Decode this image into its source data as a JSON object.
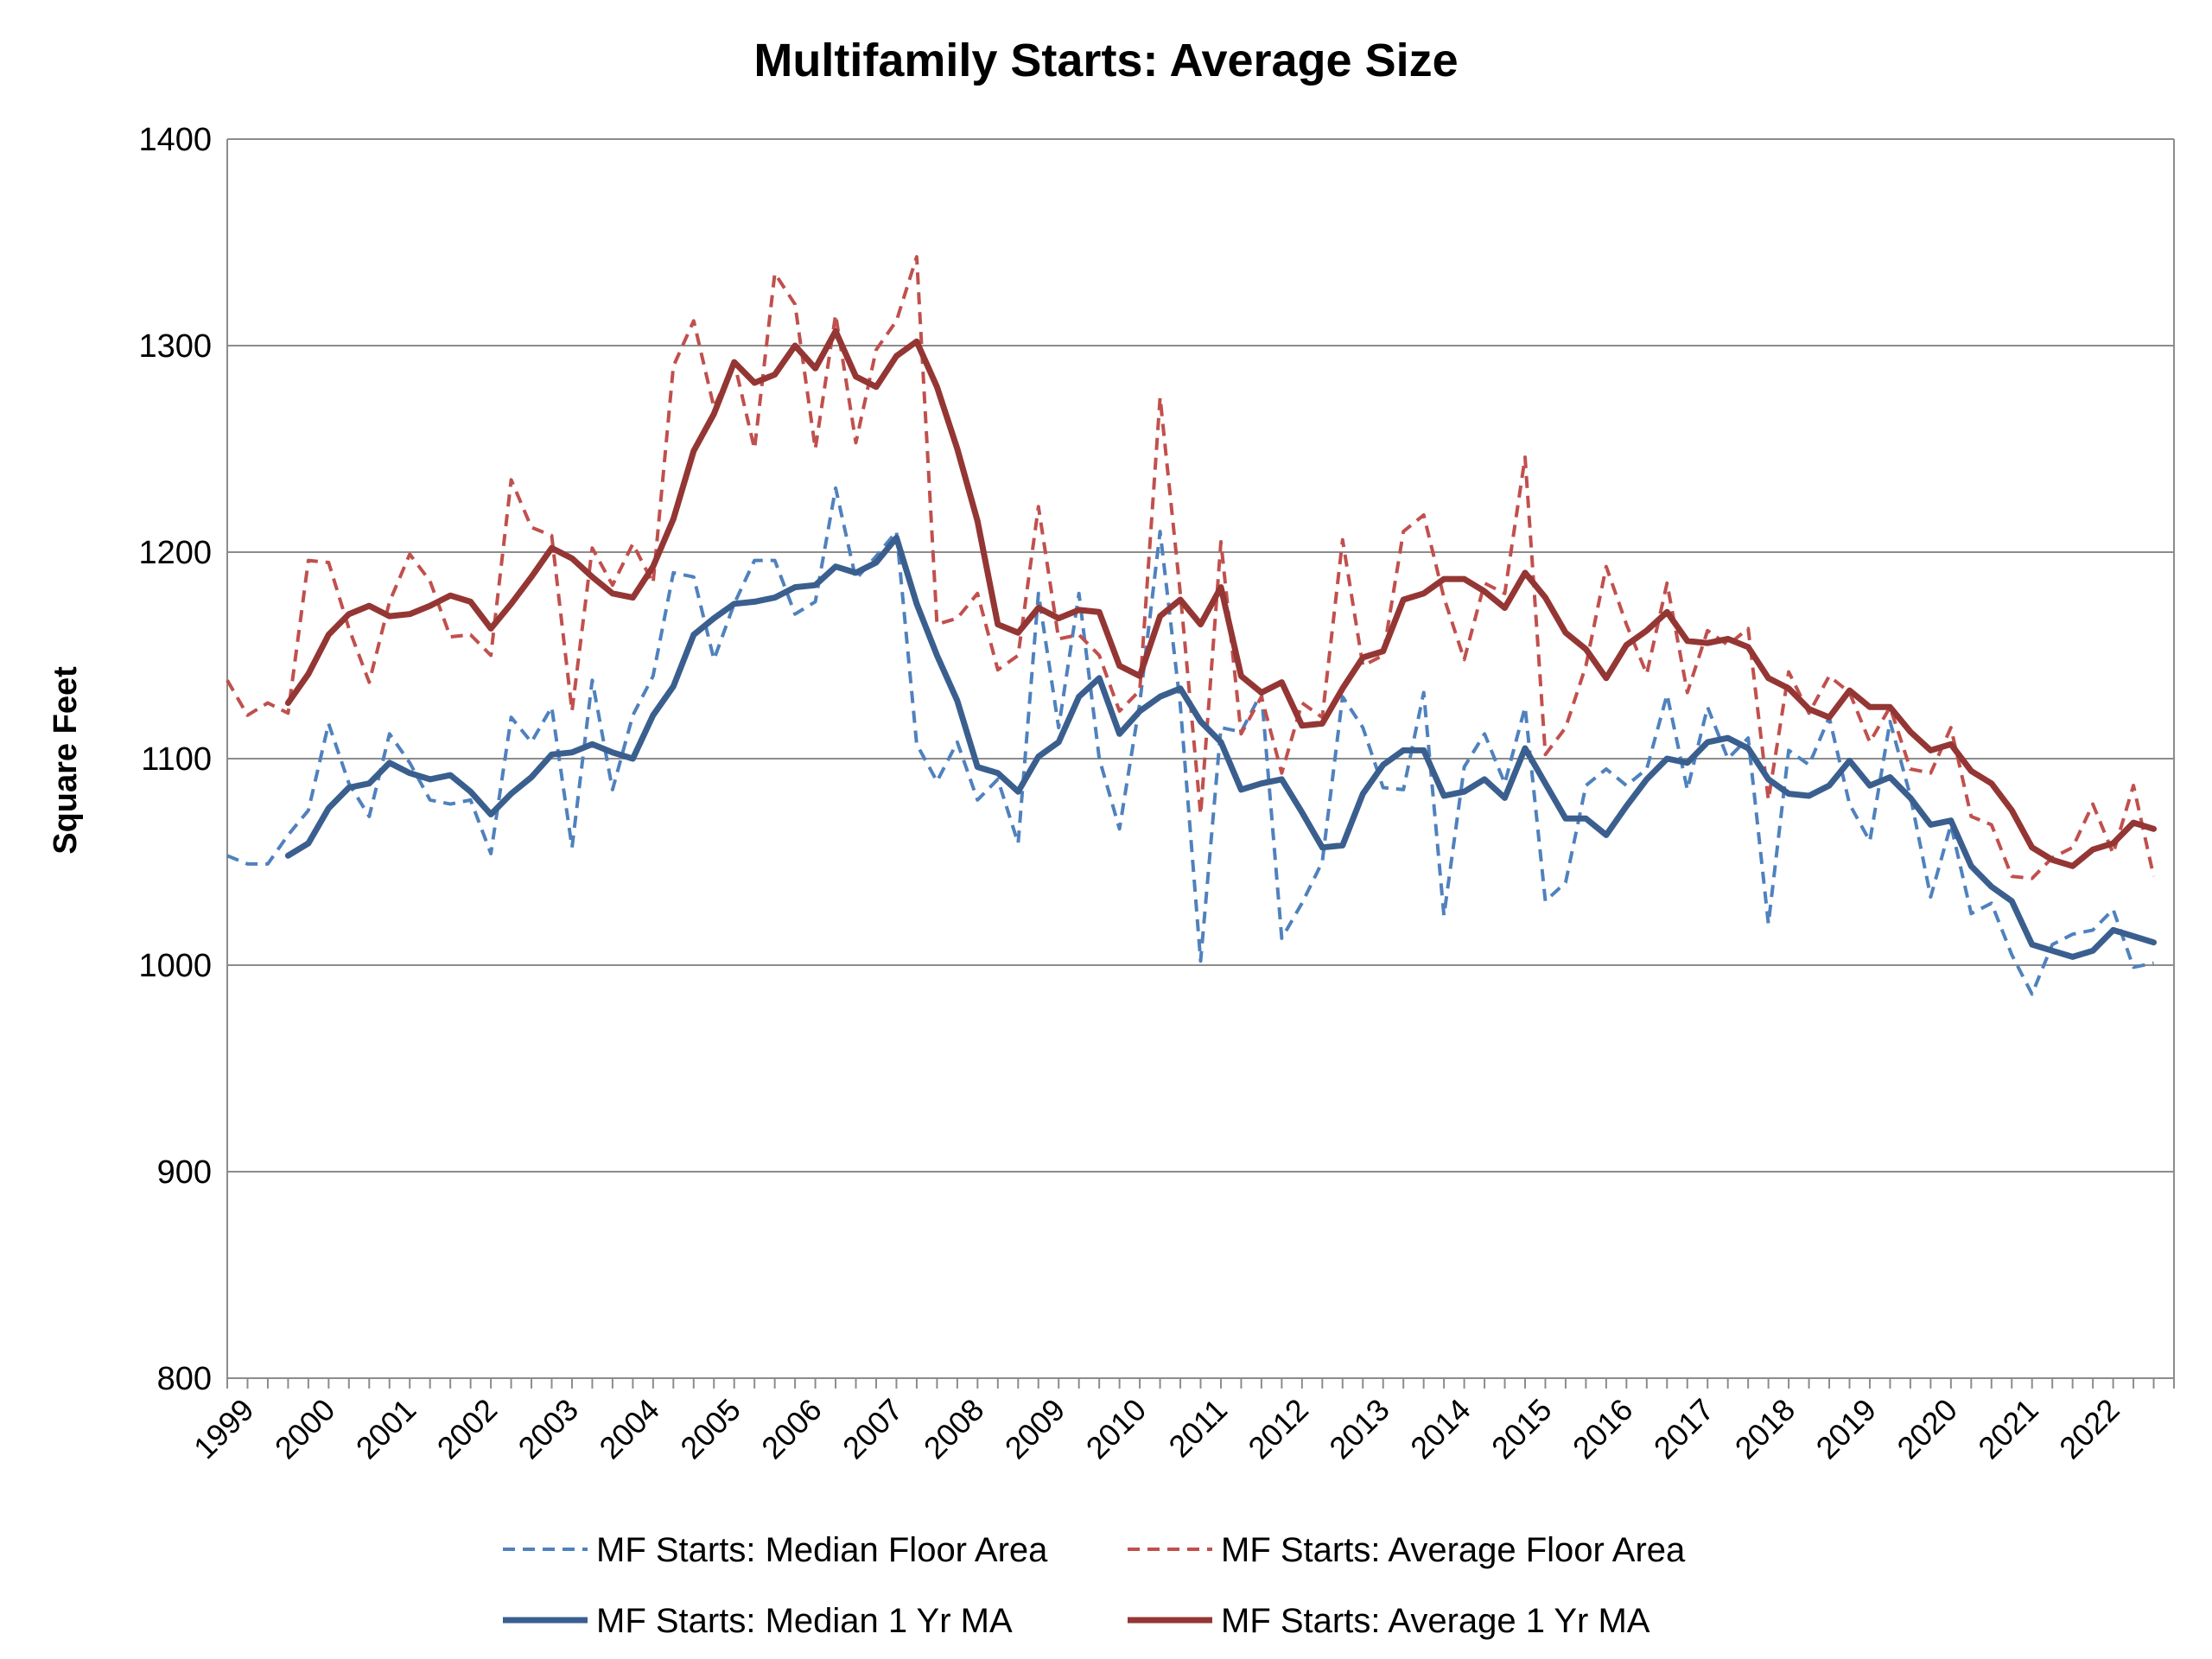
{
  "chart_data": {
    "type": "line",
    "title": "Multifamily Starts: Average Size",
    "xlabel": "",
    "ylabel": "Square Feet",
    "ylim": [
      800,
      1400
    ],
    "yticks": [
      800,
      900,
      1000,
      1100,
      1200,
      1300,
      1400
    ],
    "xlim": [
      1999,
      2023
    ],
    "x_tick_labels": [
      "1999",
      "2000",
      "2001",
      "2002",
      "2003",
      "2004",
      "2005",
      "2006",
      "2007",
      "2008",
      "2009",
      "2010",
      "2011",
      "2012",
      "2013",
      "2014",
      "2015",
      "2016",
      "2017",
      "2018",
      "2019",
      "2020",
      "2021",
      "2022"
    ],
    "grid": "horizontal",
    "legend_position": "bottom",
    "x_quarterly_start": "1999 Q1",
    "series": [
      {
        "name": "MF Starts: Median Floor Area",
        "style": "dashed",
        "color": "#4f81bd",
        "values": [
          1053,
          1049,
          1049,
          1063,
          1075,
          1117,
          1088,
          1072,
          1112,
          1098,
          1080,
          1078,
          1080,
          1054,
          1120,
          1108,
          1125,
          1057,
          1138,
          1085,
          1121,
          1140,
          1190,
          1188,
          1148,
          1175,
          1196,
          1196,
          1170,
          1176,
          1231,
          1187,
          1198,
          1210,
          1107,
          1089,
          1108,
          1080,
          1090,
          1059,
          1180,
          1115,
          1180,
          1100,
          1066,
          1127,
          1210,
          1126,
          1002,
          1115,
          1113,
          1132,
          1013,
          1030,
          1050,
          1130,
          1115,
          1086,
          1085,
          1132,
          1024,
          1096,
          1112,
          1088,
          1125,
          1031,
          1040,
          1087,
          1095,
          1087,
          1095,
          1131,
          1085,
          1125,
          1100,
          1110,
          1020,
          1104,
          1097,
          1120,
          1078,
          1060,
          1118,
          1082,
          1033,
          1068,
          1025,
          1030,
          1005,
          986,
          1010,
          1015,
          1017,
          1027,
          999,
          1001
        ]
      },
      {
        "name": "MF Starts: Average Floor Area",
        "style": "dashed",
        "color": "#c0504d",
        "values": [
          1138,
          1121,
          1127,
          1122,
          1196,
          1195,
          1163,
          1137,
          1176,
          1199,
          1186,
          1159,
          1160,
          1150,
          1235,
          1212,
          1208,
          1123,
          1202,
          1184,
          1204,
          1185,
          1290,
          1312,
          1270,
          1292,
          1250,
          1335,
          1320,
          1250,
          1315,
          1253,
          1298,
          1312,
          1343,
          1165,
          1168,
          1180,
          1143,
          1150,
          1222,
          1158,
          1160,
          1150,
          1123,
          1133,
          1275,
          1180,
          1073,
          1205,
          1112,
          1130,
          1093,
          1127,
          1120,
          1206,
          1145,
          1150,
          1210,
          1218,
          1178,
          1148,
          1185,
          1180,
          1246,
          1102,
          1115,
          1145,
          1193,
          1165,
          1141,
          1185,
          1132,
          1162,
          1155,
          1163,
          1080,
          1142,
          1122,
          1140,
          1132,
          1108,
          1125,
          1095,
          1093,
          1115,
          1072,
          1068,
          1043,
          1042,
          1052,
          1057,
          1078,
          1054,
          1087,
          1043
        ]
      },
      {
        "name": "MF Starts: Median 1 Yr MA",
        "style": "solid",
        "color": "#3a5f8f",
        "values": [
          null,
          null,
          null,
          1053,
          1059,
          1076,
          1086,
          1088,
          1098,
          1093,
          1090,
          1092,
          1084,
          1073,
          1083,
          1091,
          1102,
          1103,
          1107,
          1103,
          1100,
          1121,
          1135,
          1160,
          1168,
          1175,
          1176,
          1178,
          1183,
          1184,
          1193,
          1190,
          1195,
          1207,
          1175,
          1150,
          1128,
          1096,
          1093,
          1084,
          1101,
          1108,
          1130,
          1139,
          1112,
          1123,
          1130,
          1134,
          1118,
          1108,
          1085,
          1088,
          1090,
          1074,
          1057,
          1058,
          1083,
          1097,
          1104,
          1104,
          1082,
          1084,
          1090,
          1081,
          1105,
          1088,
          1071,
          1071,
          1063,
          1077,
          1090,
          1100,
          1098,
          1108,
          1110,
          1105,
          1090,
          1083,
          1082,
          1087,
          1099,
          1087,
          1091,
          1081,
          1068,
          1070,
          1048,
          1038,
          1031,
          1010,
          1007,
          1004,
          1007,
          1017,
          1014,
          1011
        ]
      },
      {
        "name": "MF Starts: Average 1 Yr MA",
        "style": "solid",
        "color": "#943634",
        "values": [
          null,
          null,
          null,
          1127,
          1141,
          1160,
          1170,
          1174,
          1169,
          1170,
          1174,
          1179,
          1176,
          1163,
          1175,
          1188,
          1202,
          1197,
          1188,
          1180,
          1178,
          1193,
          1216,
          1249,
          1267,
          1292,
          1282,
          1286,
          1300,
          1289,
          1307,
          1285,
          1280,
          1295,
          1302,
          1280,
          1250,
          1215,
          1165,
          1161,
          1173,
          1168,
          1172,
          1171,
          1145,
          1140,
          1169,
          1177,
          1165,
          1183,
          1140,
          1132,
          1137,
          1116,
          1117,
          1134,
          1149,
          1152,
          1177,
          1180,
          1187,
          1187,
          1181,
          1173,
          1190,
          1178,
          1161,
          1153,
          1139,
          1155,
          1162,
          1171,
          1157,
          1156,
          1158,
          1154,
          1139,
          1134,
          1124,
          1120,
          1133,
          1125,
          1125,
          1113,
          1104,
          1107,
          1094,
          1088,
          1075,
          1057,
          1051,
          1048,
          1056,
          1059,
          1069,
          1066
        ]
      }
    ]
  }
}
